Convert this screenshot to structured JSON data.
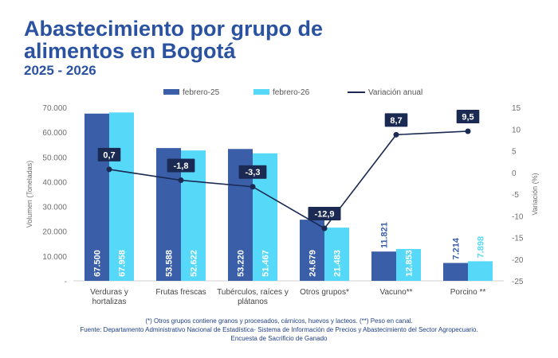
{
  "header": {
    "title": "Abastecimiento por grupo de alimentos en Bogotá",
    "subtitle": "2025 - 2026"
  },
  "colors": {
    "title": "#2a52a0",
    "series_feb25": "#3a5fa8",
    "series_feb26": "#56d8f8",
    "variation_line": "#1b2a52",
    "label_box": "#1b2a52"
  },
  "chart_data": {
    "type": "bar",
    "categories": [
      [
        "Verduras y",
        "hortalizas"
      ],
      [
        "Frutas frescas"
      ],
      [
        "Tubérculos, raíces y",
        "plátanos"
      ],
      [
        "Otros grupos*"
      ],
      [
        "Vacuno**"
      ],
      [
        "Porcino **"
      ]
    ],
    "series": [
      {
        "name": "febrero-25",
        "values": [
          67500,
          53588,
          53220,
          24679,
          11821,
          7214
        ],
        "labels": [
          "67.500",
          "53.588",
          "53.220",
          "24.679",
          "11.821",
          "7.214"
        ]
      },
      {
        "name": "febrero-26",
        "values": [
          67958,
          52622,
          51467,
          21483,
          12853,
          7898
        ],
        "labels": [
          "67.958",
          "52.622",
          "51.467",
          "21.483",
          "12.853",
          "7.898"
        ]
      }
    ],
    "line_series": {
      "name": "Variación anual",
      "values": [
        0.7,
        -1.8,
        -3.3,
        -12.9,
        8.7,
        9.5
      ],
      "labels": [
        "0,7",
        "-1,8",
        "-3,3",
        "-12,9",
        "8,7",
        "9,5"
      ]
    },
    "ylabel": "Volumen (Toneladas)",
    "y2label": "Variación (%)",
    "ylim": [
      0,
      70000
    ],
    "y_ticks": [
      0,
      10000,
      20000,
      30000,
      40000,
      50000,
      60000,
      70000
    ],
    "y_tick_labels": [
      "-",
      "10.000",
      "20.000",
      "30.000",
      "40.000",
      "50.000",
      "60.000",
      "70.000"
    ],
    "y2lim": [
      -25,
      15
    ],
    "y2_ticks": [
      15,
      10,
      5,
      0,
      -5,
      -10,
      -15,
      -20,
      -25
    ],
    "y2_tick_labels": [
      "15",
      "10",
      "5",
      "0",
      "-5",
      "-10",
      "-15",
      "-20",
      "-25"
    ],
    "legend_position": "top",
    "grid": false
  },
  "notes": {
    "line1": "(*) Otros grupos contiene granos y procesados, cárnicos, huevos y lacteos. (**) Peso en canal.",
    "line2": "Fuente: Departamento Administrativo Nacional de Estadística- Sistema de Información de Precios y Abastecimiento del Sector Agropecuario.",
    "line3": "Encuesta de  Sacrificio de Ganado"
  }
}
